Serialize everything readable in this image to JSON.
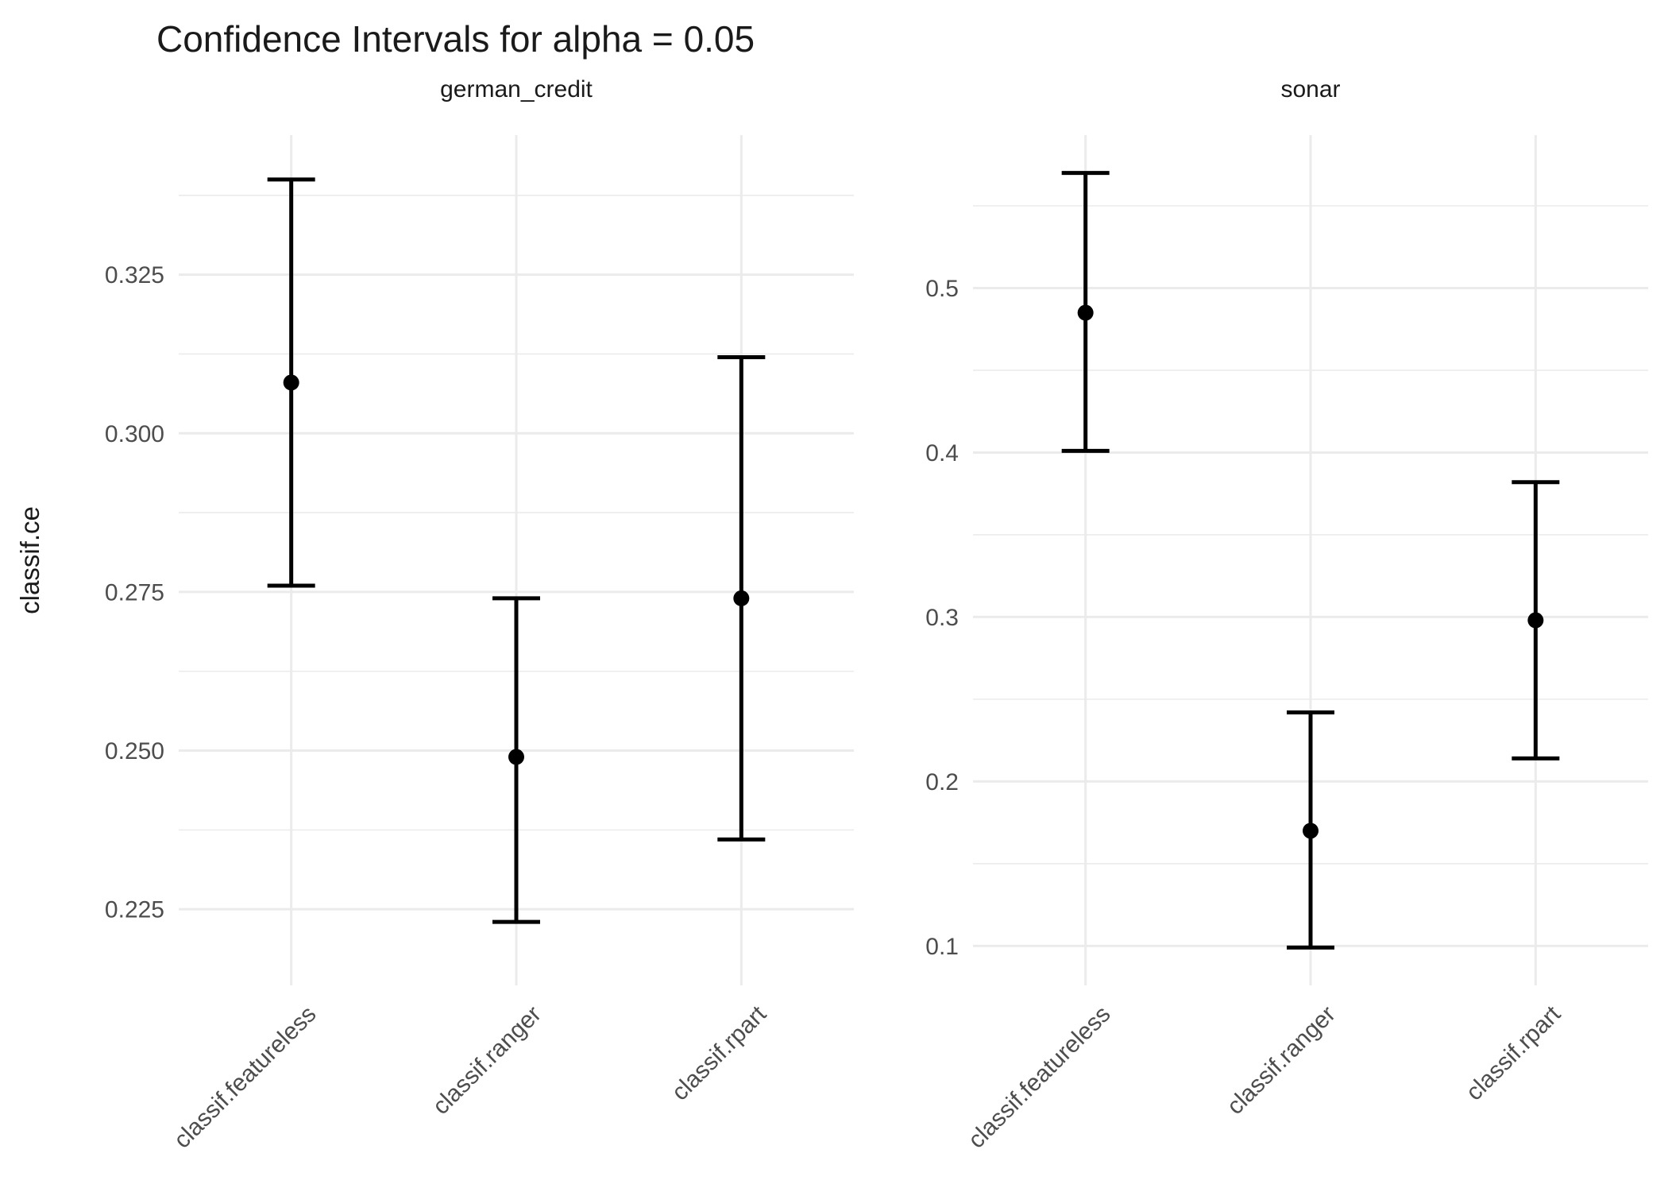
{
  "title": "Confidence Intervals for alpha = 0.05",
  "ylabel": "classif.ce",
  "chart_data": {
    "type": "errorbar",
    "title": "Confidence Intervals for alpha = 0.05",
    "ylabel": "classif.ce",
    "xlabel": "",
    "grid": true,
    "legend": "none",
    "categories": [
      "classif.featureless",
      "classif.ranger",
      "classif.rpart"
    ],
    "facets": [
      {
        "label": "german_credit",
        "ylim": [
          0.213,
          0.347
        ],
        "yticks": [
          0.225,
          0.25,
          0.275,
          0.3,
          0.325
        ],
        "ytick_labels": [
          "0.225",
          "0.250",
          "0.275",
          "0.300",
          "0.325"
        ],
        "series": [
          {
            "category": "classif.featureless",
            "mid": 0.308,
            "lower": 0.276,
            "upper": 0.34
          },
          {
            "category": "classif.ranger",
            "mid": 0.249,
            "lower": 0.223,
            "upper": 0.274
          },
          {
            "category": "classif.rpart",
            "mid": 0.274,
            "lower": 0.236,
            "upper": 0.312
          }
        ]
      },
      {
        "label": "sonar",
        "ylim": [
          0.076,
          0.593
        ],
        "yticks": [
          0.1,
          0.2,
          0.3,
          0.4,
          0.5
        ],
        "ytick_labels": [
          "0.1",
          "0.2",
          "0.3",
          "0.4",
          "0.5"
        ],
        "series": [
          {
            "category": "classif.featureless",
            "mid": 0.485,
            "lower": 0.401,
            "upper": 0.57
          },
          {
            "category": "classif.ranger",
            "mid": 0.17,
            "lower": 0.099,
            "upper": 0.242
          },
          {
            "category": "classif.rpart",
            "mid": 0.298,
            "lower": 0.214,
            "upper": 0.382
          }
        ]
      }
    ],
    "style": {
      "point_color": "#000000",
      "bar_color": "#000000",
      "grid_color": "#ebebeb",
      "text_color": "#4d4d4d",
      "title_color": "#1a1a1a",
      "background": "#ffffff"
    }
  }
}
